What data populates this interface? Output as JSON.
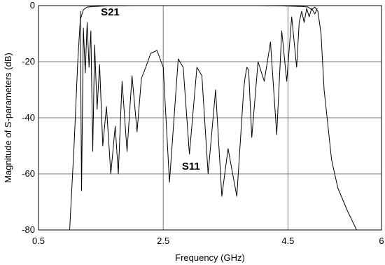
{
  "chart_data": {
    "type": "line",
    "xlabel": "Frequency (GHz)",
    "ylabel": "Magnitude of S-parameters (dB)",
    "xlim": [
      0.5,
      6
    ],
    "ylim": [
      -80,
      0
    ],
    "xticks": [
      0.5,
      2.5,
      4.5,
      6
    ],
    "xtick_labels": [
      "0.5",
      "2.5",
      "4.5",
      "6"
    ],
    "yticks": [
      0,
      -20,
      -40,
      -60,
      -80
    ],
    "ytick_labels": [
      "0",
      "-20",
      "-40",
      "-60",
      "-80"
    ],
    "grid": true,
    "line_color": "#000000",
    "grid_color": "#7a7a7a",
    "annotations": [
      {
        "text": "S21",
        "x": 1.5,
        "y": -2
      },
      {
        "text": "S11",
        "x": 2.8,
        "y": -57
      }
    ],
    "series": [
      {
        "label": "S21",
        "x": [
          1.0,
          1.07,
          1.13,
          1.17,
          1.22,
          1.28,
          1.4,
          1.6,
          2.0,
          2.5,
          3.0,
          3.5,
          4.0,
          4.4,
          4.72,
          4.82,
          4.88,
          4.93,
          4.98,
          5.03,
          5.08,
          5.2,
          5.3,
          5.45,
          5.6
        ],
        "y": [
          -80,
          -50,
          -20,
          -5,
          -1.5,
          -0.5,
          -0.3,
          -0.1,
          0,
          0,
          0,
          0,
          0,
          -0.1,
          -0.3,
          -0.5,
          -1.5,
          -0.5,
          -2,
          -10,
          -30,
          -55,
          -65,
          -73,
          -80
        ]
      },
      {
        "label": "S11",
        "x": [
          1.17,
          1.19,
          1.22,
          1.25,
          1.28,
          1.31,
          1.34,
          1.37,
          1.4,
          1.44,
          1.48,
          1.53,
          1.59,
          1.66,
          1.73,
          1.78,
          1.84,
          1.92,
          2.0,
          2.08,
          2.15,
          2.22,
          2.3,
          2.4,
          2.5,
          2.6,
          2.74,
          2.82,
          2.92,
          3.04,
          3.12,
          3.22,
          3.34,
          3.44,
          3.54,
          3.68,
          3.79,
          3.81,
          3.84,
          3.87,
          3.92,
          4.02,
          4.12,
          4.22,
          4.32,
          4.4,
          4.48,
          4.56,
          4.64,
          4.68,
          4.72,
          4.76,
          4.8,
          4.84,
          4.88,
          4.93,
          4.97
        ],
        "y": [
          -2,
          -66,
          -8,
          -24,
          -6,
          -22,
          -9,
          -52,
          -14,
          -37,
          -21,
          -50,
          -36,
          -60,
          -43,
          -60,
          -27,
          -52,
          -25,
          -45,
          -26,
          -22,
          -17,
          -16,
          -22,
          -63,
          -19,
          -22,
          -53,
          -22,
          -25,
          -60,
          -30,
          -68,
          -51,
          -68,
          -30,
          -26,
          -22,
          -23,
          -47,
          -20,
          -27,
          -13,
          -46,
          -9,
          -27,
          -4,
          -22,
          -6,
          -2,
          -6,
          -1,
          -4,
          -1,
          -3,
          -1
        ]
      }
    ]
  }
}
